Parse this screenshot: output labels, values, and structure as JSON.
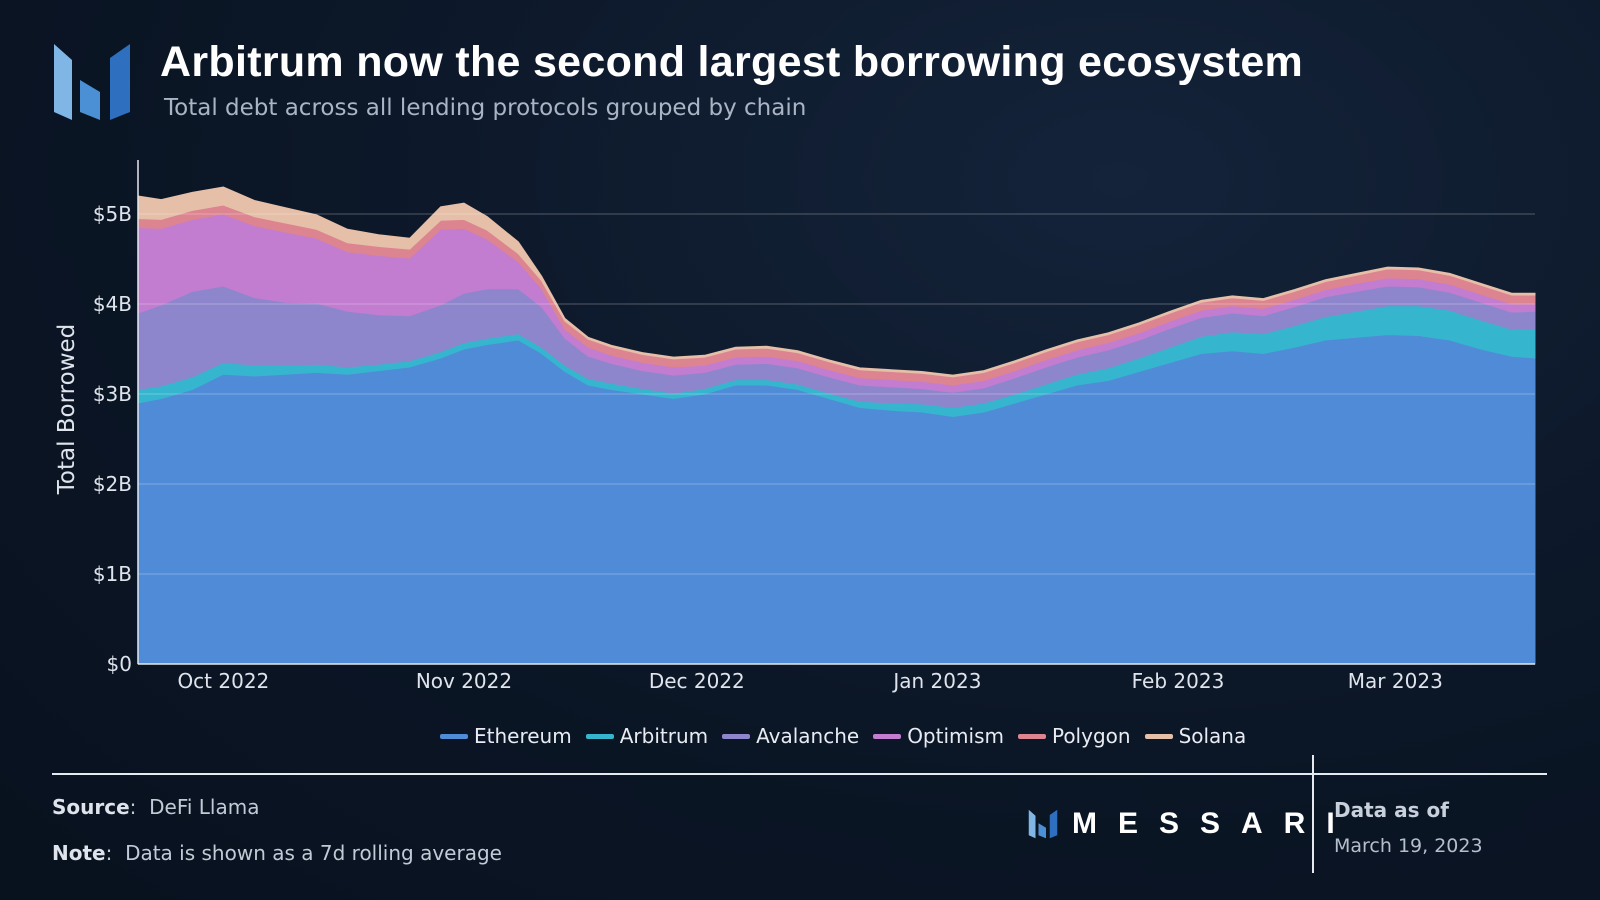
{
  "header": {
    "title": "Arbitrum now the second largest borrowing ecosystem",
    "subtitle": "Total debt across all lending protocols grouped by chain"
  },
  "footer": {
    "source_label": "Source",
    "source_value": "DeFi Llama",
    "note_label": "Note",
    "note_value": "Data is shown as a 7d rolling average",
    "brand": "MESSARI",
    "asof_label": "Data as of",
    "asof_date": "March 19, 2023"
  },
  "chart_data": {
    "type": "area",
    "stacked": true,
    "title": "Arbitrum now the second largest borrowing ecosystem",
    "ylabel": "Total Borrowed",
    "ylim": [
      0,
      5.6
    ],
    "yunit": "billions USD",
    "yticks": [
      0,
      1,
      2,
      3,
      4,
      5
    ],
    "ytick_labels": [
      "$0",
      "$1B",
      "$2B",
      "$3B",
      "$4B",
      "$5B"
    ],
    "xlim": [
      "2022-09-20",
      "2023-03-19"
    ],
    "xticks": [
      "2022-10-01",
      "2022-11-01",
      "2022-12-01",
      "2023-01-01",
      "2023-02-01",
      "2023-03-01"
    ],
    "xtick_labels": [
      "Oct 2022",
      "Nov 2022",
      "Dec 2022",
      "Jan 2023",
      "Feb 2023",
      "Mar 2023"
    ],
    "legend_position": "bottom-center",
    "x": [
      "2022-09-20",
      "2022-09-23",
      "2022-09-27",
      "2022-10-01",
      "2022-10-05",
      "2022-10-09",
      "2022-10-13",
      "2022-10-17",
      "2022-10-21",
      "2022-10-25",
      "2022-10-29",
      "2022-11-01",
      "2022-11-04",
      "2022-11-08",
      "2022-11-11",
      "2022-11-14",
      "2022-11-17",
      "2022-11-20",
      "2022-11-24",
      "2022-11-28",
      "2022-12-02",
      "2022-12-06",
      "2022-12-10",
      "2022-12-14",
      "2022-12-18",
      "2022-12-22",
      "2022-12-26",
      "2022-12-30",
      "2023-01-03",
      "2023-01-07",
      "2023-01-11",
      "2023-01-15",
      "2023-01-19",
      "2023-01-23",
      "2023-01-27",
      "2023-01-31",
      "2023-02-04",
      "2023-02-08",
      "2023-02-12",
      "2023-02-16",
      "2023-02-20",
      "2023-02-24",
      "2023-02-28",
      "2023-03-04",
      "2023-03-08",
      "2023-03-12",
      "2023-03-16",
      "2023-03-19"
    ],
    "series": [
      {
        "name": "Ethereum",
        "color": "#4f8bd6",
        "values": [
          2.9,
          2.95,
          3.05,
          3.22,
          3.2,
          3.22,
          3.24,
          3.22,
          3.26,
          3.3,
          3.4,
          3.5,
          3.55,
          3.6,
          3.45,
          3.25,
          3.1,
          3.05,
          3.0,
          2.95,
          3.0,
          3.1,
          3.1,
          3.05,
          2.95,
          2.85,
          2.82,
          2.8,
          2.75,
          2.8,
          2.9,
          3.0,
          3.1,
          3.15,
          3.25,
          3.35,
          3.45,
          3.48,
          3.45,
          3.52,
          3.6,
          3.63,
          3.66,
          3.65,
          3.6,
          3.5,
          3.42,
          3.4
        ]
      },
      {
        "name": "Arbitrum",
        "color": "#36b5cf",
        "values": [
          0.15,
          0.14,
          0.14,
          0.13,
          0.12,
          0.1,
          0.09,
          0.08,
          0.07,
          0.07,
          0.07,
          0.07,
          0.07,
          0.07,
          0.07,
          0.07,
          0.07,
          0.07,
          0.06,
          0.06,
          0.06,
          0.06,
          0.06,
          0.06,
          0.06,
          0.07,
          0.08,
          0.09,
          0.1,
          0.1,
          0.1,
          0.11,
          0.12,
          0.14,
          0.15,
          0.17,
          0.19,
          0.21,
          0.22,
          0.24,
          0.26,
          0.29,
          0.32,
          0.33,
          0.33,
          0.32,
          0.3,
          0.32
        ]
      },
      {
        "name": "Avalanche",
        "color": "#8e86cc",
        "values": [
          0.85,
          0.9,
          0.95,
          0.85,
          0.75,
          0.7,
          0.68,
          0.62,
          0.55,
          0.5,
          0.52,
          0.55,
          0.55,
          0.5,
          0.45,
          0.3,
          0.25,
          0.22,
          0.2,
          0.2,
          0.18,
          0.17,
          0.18,
          0.18,
          0.18,
          0.18,
          0.18,
          0.17,
          0.17,
          0.17,
          0.18,
          0.19,
          0.19,
          0.2,
          0.2,
          0.21,
          0.21,
          0.21,
          0.2,
          0.21,
          0.22,
          0.22,
          0.22,
          0.21,
          0.2,
          0.2,
          0.19,
          0.2
        ]
      },
      {
        "name": "Optimism",
        "color": "#c27cd0",
        "values": [
          0.95,
          0.85,
          0.8,
          0.8,
          0.8,
          0.78,
          0.72,
          0.66,
          0.66,
          0.64,
          0.84,
          0.72,
          0.55,
          0.3,
          0.2,
          0.1,
          0.1,
          0.09,
          0.09,
          0.09,
          0.08,
          0.08,
          0.08,
          0.08,
          0.08,
          0.08,
          0.08,
          0.08,
          0.08,
          0.08,
          0.08,
          0.08,
          0.08,
          0.08,
          0.08,
          0.08,
          0.08,
          0.08,
          0.08,
          0.08,
          0.08,
          0.09,
          0.09,
          0.09,
          0.09,
          0.09,
          0.09,
          0.08
        ]
      },
      {
        "name": "Polygon",
        "color": "#dd8491",
        "values": [
          0.1,
          0.1,
          0.1,
          0.1,
          0.1,
          0.1,
          0.1,
          0.1,
          0.1,
          0.1,
          0.1,
          0.1,
          0.1,
          0.09,
          0.09,
          0.09,
          0.09,
          0.09,
          0.09,
          0.09,
          0.09,
          0.09,
          0.09,
          0.09,
          0.09,
          0.09,
          0.09,
          0.09,
          0.09,
          0.09,
          0.09,
          0.09,
          0.09,
          0.09,
          0.09,
          0.09,
          0.09,
          0.09,
          0.09,
          0.09,
          0.09,
          0.09,
          0.1,
          0.1,
          0.1,
          0.1,
          0.1,
          0.1
        ]
      },
      {
        "name": "Solana",
        "color": "#e5bfa8",
        "values": [
          0.25,
          0.22,
          0.2,
          0.2,
          0.18,
          0.17,
          0.16,
          0.15,
          0.13,
          0.12,
          0.15,
          0.18,
          0.15,
          0.13,
          0.05,
          0.03,
          0.02,
          0.02,
          0.02,
          0.02,
          0.02,
          0.02,
          0.02,
          0.02,
          0.02,
          0.02,
          0.02,
          0.02,
          0.02,
          0.02,
          0.02,
          0.02,
          0.02,
          0.02,
          0.02,
          0.02,
          0.02,
          0.02,
          0.02,
          0.02,
          0.02,
          0.02,
          0.02,
          0.02,
          0.02,
          0.02,
          0.02,
          0.02
        ]
      }
    ]
  }
}
